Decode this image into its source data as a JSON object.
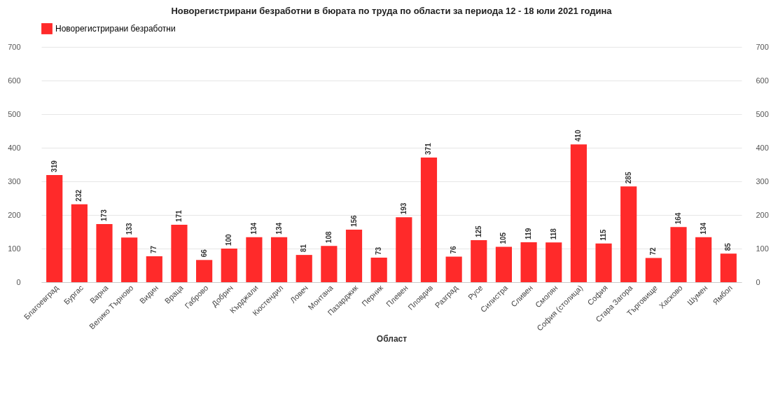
{
  "chart_data": {
    "type": "bar",
    "title": "Новорегистрирани безработни в бюрата по труда по области за периода 12 - 18 юли 2021 година",
    "xlabel": "Област",
    "categories": [
      "Благоевград",
      "Бургас",
      "Варна",
      "Велико Търново",
      "Видин",
      "Враца",
      "Габрово",
      "Добрич",
      "Кърджали",
      "Кюстендил",
      "Ловеч",
      "Монтана",
      "Пазарджик",
      "Перник",
      "Плевен",
      "Пловдив",
      "Разград",
      "Русе",
      "Силистра",
      "Сливен",
      "Смолян",
      "София (столица)",
      "София",
      "Стара Загора",
      "Търговище",
      "Хасково",
      "Шумен",
      "Ямбол"
    ],
    "series": [
      {
        "name": "Новорегистрирани безработни",
        "color": "#ff2a2a",
        "values": [
          319,
          232,
          173,
          133,
          77,
          171,
          66,
          100,
          134,
          134,
          81,
          108,
          156,
          73,
          193,
          371,
          76,
          125,
          105,
          119,
          118,
          410,
          115,
          285,
          72,
          164,
          134,
          85
        ]
      }
    ],
    "ylim": [
      0,
      700
    ],
    "yticks": [
      0,
      100,
      200,
      300,
      400,
      500,
      600,
      700
    ],
    "y2lim": [
      0,
      700
    ],
    "y2ticks": [
      0,
      100,
      200,
      300,
      400,
      500,
      600,
      700
    ],
    "grid": "y",
    "legend": "top",
    "data_labels": true
  }
}
